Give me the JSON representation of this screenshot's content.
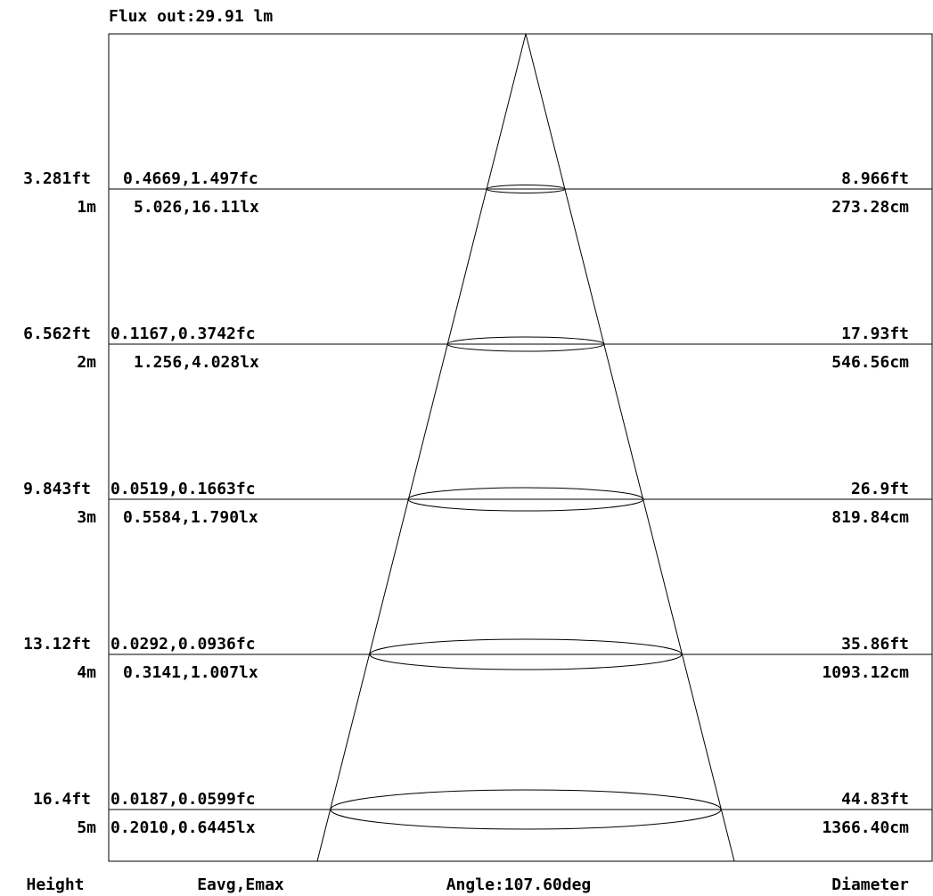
{
  "header": {
    "flux_label": "Flux out:29.91 lm"
  },
  "footer": {
    "height_label": "Height",
    "illuminance_label": "Eavg,Emax",
    "angle_label": "Angle:107.60deg",
    "diameter_label": "Diameter"
  },
  "levels": [
    {
      "height_ft": "3.281ft",
      "height_m": "1m",
      "fc": "0.4669,1.497fc",
      "lx": "5.026,16.11lx",
      "diameter_ft": "8.966ft",
      "diameter_cm": "273.28cm"
    },
    {
      "height_ft": "6.562ft",
      "height_m": "2m",
      "fc": "0.1167,0.3742fc",
      "lx": "1.256,4.028lx",
      "diameter_ft": "17.93ft",
      "diameter_cm": "546.56cm"
    },
    {
      "height_ft": "9.843ft",
      "height_m": "3m",
      "fc": "0.0519,0.1663fc",
      "lx": "0.5584,1.790lx",
      "diameter_ft": "26.9ft",
      "diameter_cm": "819.84cm"
    },
    {
      "height_ft": "13.12ft",
      "height_m": "4m",
      "fc": "0.0292,0.0936fc",
      "lx": "0.3141,1.007lx",
      "diameter_ft": "35.86ft",
      "diameter_cm": "1093.12cm"
    },
    {
      "height_ft": "16.4ft",
      "height_m": "5m",
      "fc": "0.0187,0.0599fc",
      "lx": "0.2010,0.6445lx",
      "diameter_ft": "44.83ft",
      "diameter_cm": "1366.40cm"
    }
  ]
}
